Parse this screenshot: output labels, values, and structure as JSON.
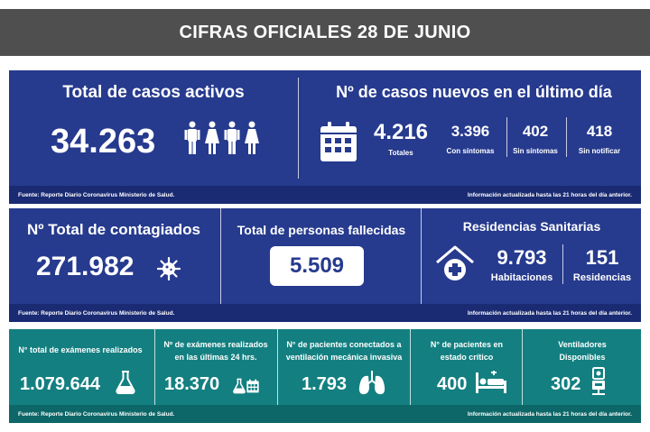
{
  "header": {
    "title": "CIFRAS OFICIALES 28 DE JUNIO"
  },
  "colors": {
    "header_bg": "#4f4f4f",
    "blue_panel": "#263a8e",
    "teal_panel": "#137f80",
    "white": "#ffffff"
  },
  "icons": [
    "person-icon",
    "calendar-icon",
    "virus-icon",
    "hospital-house-icon",
    "flask-icon",
    "lungs-icon",
    "hospital-bed-icon",
    "ventilator-icon"
  ],
  "panel1": {
    "active_title": "Total de casos activos",
    "active_value": "34.263",
    "new_title": "Nº de casos nuevos en el último día",
    "totales_value": "4.216",
    "totales_label": "Totales",
    "con_sintomas_value": "3.396",
    "con_sintomas_label": "Con síntomas",
    "sin_sintomas_value": "402",
    "sin_sintomas_label": "Sin síntomas",
    "sin_notificar_value": "418",
    "sin_notificar_label": "Sin notificar",
    "footer_left": "Fuente: Reporte Diario Coronavirus Ministerio de Salud.",
    "footer_right": "Información actualizada hasta las 21 horas  del día anterior."
  },
  "panel2": {
    "contagiados_title": "Nº Total de contagiados",
    "contagiados_value": "271.982",
    "fallecidos_title": "Total de personas fallecidas",
    "fallecidos_value": "5.509",
    "residencias_title": "Residencias Sanitarias",
    "habitaciones_value": "9.793",
    "habitaciones_label": "Habitaciones",
    "residencias_value": "151",
    "residencias_label": "Residencias",
    "footer_left": "Fuente: Reporte Diario Coronavirus Ministerio de Salud.",
    "footer_right": "Información actualizada hasta las 21 horas  del día anterior."
  },
  "panel3": {
    "examenes_title": "N° total de exámenes realizados",
    "examenes_value": "1.079.644",
    "examenes24_title_1": "Nº de exámenes realizados",
    "examenes24_title_2": "en las últimas 24 hrs.",
    "examenes24_value": "18.370",
    "ventilacion_title_1": "N° de pacientes conectados a",
    "ventilacion_title_2": "ventilación mecánica invasiva",
    "ventilacion_value": "1.793",
    "critico_title_1": "N° de pacientes  en",
    "critico_title_2": "estado crítico",
    "critico_value": "400",
    "ventiladores_title_1": "Ventiladores",
    "ventiladores_title_2": "Disponibles",
    "ventiladores_value": "302",
    "footer_left": "Fuente: Reporte Diario Coronavirus Ministerio de Salud.",
    "footer_right": "Información actualizada hasta las 21 horas  del día anterior."
  }
}
